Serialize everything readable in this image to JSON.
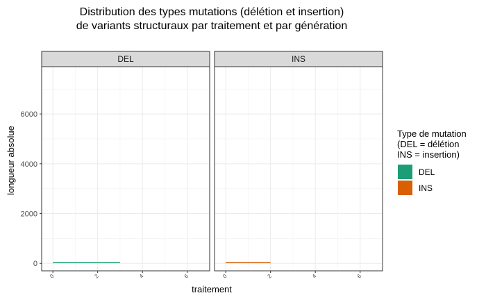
{
  "chart_data": {
    "type": "bar",
    "title": [
      "Distribution des types mutations (délétion et insertion)",
      "de variants structuraux par traitement et par génération"
    ],
    "xlabel": "traitement",
    "ylabel": "longueur absolue",
    "xlim": [
      -0.5,
      7
    ],
    "ylim": [
      -300,
      7900
    ],
    "xticks": [
      0,
      2,
      4,
      6
    ],
    "yticks": [
      0,
      2000,
      4000,
      6000
    ],
    "grid": true,
    "legend": {
      "title": [
        "Type de mutation",
        "(DEL = délétion",
        "INS = insertion)"
      ],
      "position": "right",
      "entries": [
        {
          "label": "DEL",
          "color": "#1B9E77"
        },
        {
          "label": "INS",
          "color": "#D95F02"
        }
      ]
    },
    "panels": [
      {
        "name": "DEL",
        "color": "#1B9E77",
        "segments": [
          {
            "x_start": 0,
            "x_end": 3,
            "y": 30
          }
        ]
      },
      {
        "name": "INS",
        "color": "#D95F02",
        "segments": [
          {
            "x_start": 0,
            "x_end": 2,
            "y": 30
          }
        ]
      }
    ]
  }
}
